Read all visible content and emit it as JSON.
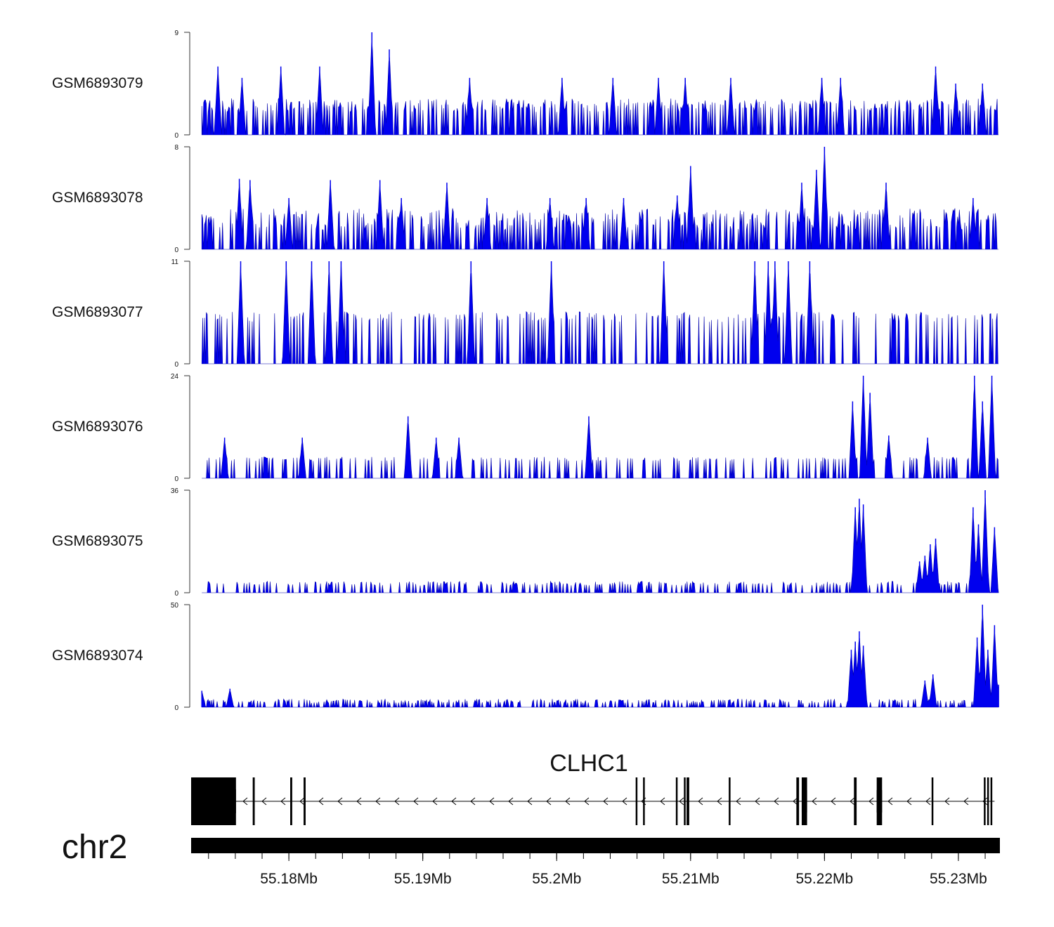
{
  "chart_data": {
    "type": "area",
    "title": "",
    "chromosome": "chr2",
    "xlim": [
      55.1727,
      55.2331
    ],
    "x_unit": "Mb",
    "series_color": "#0000ee",
    "tracks": [
      {
        "name": "GSM6893079",
        "ymax": 9,
        "yticks": [
          "0",
          "9"
        ],
        "peaks": [
          [
            55.1747,
            6
          ],
          [
            55.1765,
            5
          ],
          [
            55.1794,
            6
          ],
          [
            55.1823,
            6
          ],
          [
            55.1862,
            9
          ],
          [
            55.1875,
            7.5
          ],
          [
            55.1935,
            5
          ],
          [
            55.2004,
            5
          ],
          [
            55.2042,
            5
          ],
          [
            55.2076,
            5
          ],
          [
            55.2096,
            5
          ],
          [
            55.213,
            5
          ],
          [
            55.2198,
            5
          ],
          [
            55.2212,
            5
          ],
          [
            55.2283,
            6
          ],
          [
            55.2298,
            4.5
          ],
          [
            55.2318,
            4.5
          ]
        ],
        "baseline": [
          2,
          3.2
        ],
        "density": 0.42
      },
      {
        "name": "GSM6893078",
        "ymax": 8,
        "yticks": [
          "0",
          "8"
        ],
        "peaks": [
          [
            55.1763,
            5.5
          ],
          [
            55.1771,
            5.4
          ],
          [
            55.18,
            4
          ],
          [
            55.1831,
            5.4
          ],
          [
            55.1868,
            5.4
          ],
          [
            55.1884,
            4
          ],
          [
            55.1918,
            5.2
          ],
          [
            55.1948,
            4
          ],
          [
            55.1995,
            4
          ],
          [
            55.2022,
            4
          ],
          [
            55.205,
            4
          ],
          [
            55.209,
            4.2
          ],
          [
            55.21,
            6.5
          ],
          [
            55.2183,
            5.2
          ],
          [
            55.2194,
            6.2
          ],
          [
            55.22,
            8
          ],
          [
            55.2246,
            5.2
          ],
          [
            55.2311,
            4
          ]
        ],
        "baseline": [
          1.5,
          3.2
        ],
        "density": 0.42
      },
      {
        "name": "GSM6893077",
        "ymax": 11,
        "yticks": [
          "0",
          "11"
        ],
        "peaks": [
          [
            55.1764,
            11
          ],
          [
            55.1798,
            11
          ],
          [
            55.1817,
            11
          ],
          [
            55.183,
            11
          ],
          [
            55.1839,
            11
          ],
          [
            55.1936,
            11
          ],
          [
            55.1996,
            11
          ],
          [
            55.208,
            11
          ],
          [
            55.2148,
            11
          ],
          [
            55.2158,
            11
          ],
          [
            55.2163,
            11
          ],
          [
            55.2173,
            11
          ],
          [
            55.2189,
            11
          ]
        ],
        "baseline": [
          4.5,
          5.6
        ],
        "density": 0.26
      },
      {
        "name": "GSM6893076",
        "ymax": 24,
        "yticks": [
          "0",
          "24"
        ],
        "peaks": [
          [
            55.1752,
            9.5
          ],
          [
            55.181,
            9.5
          ],
          [
            55.1889,
            14.5
          ],
          [
            55.191,
            9.5
          ],
          [
            55.1927,
            9.5
          ],
          [
            55.2024,
            14.5
          ],
          [
            55.2221,
            18
          ],
          [
            55.2229,
            24
          ],
          [
            55.2234,
            20
          ],
          [
            55.2248,
            10
          ],
          [
            55.2277,
            9.5
          ],
          [
            55.2312,
            24
          ],
          [
            55.2318,
            18
          ],
          [
            55.2325,
            24
          ]
        ],
        "baseline": [
          4,
          5
        ],
        "density": 0.22
      },
      {
        "name": "GSM6893075",
        "ymax": 36,
        "yticks": [
          "0",
          "36"
        ],
        "peaks": [
          [
            55.2223,
            30
          ],
          [
            55.2226,
            33
          ],
          [
            55.2229,
            31
          ],
          [
            55.2271,
            11
          ],
          [
            55.2275,
            13
          ],
          [
            55.2279,
            17
          ],
          [
            55.2283,
            19
          ],
          [
            55.2311,
            30
          ],
          [
            55.2315,
            24
          ],
          [
            55.232,
            36
          ],
          [
            55.2327,
            23
          ]
        ],
        "baseline": [
          2.5,
          4
        ],
        "density": 0.28
      },
      {
        "name": "GSM6893074",
        "ymax": 50,
        "yticks": [
          "0",
          "50"
        ],
        "peaks": [
          [
            55.1735,
            8
          ],
          [
            55.1756,
            9
          ],
          [
            55.222,
            28
          ],
          [
            55.2223,
            32
          ],
          [
            55.2226,
            37
          ],
          [
            55.2229,
            30
          ],
          [
            55.2275,
            13
          ],
          [
            55.2281,
            16
          ],
          [
            55.2314,
            34
          ],
          [
            55.2318,
            50
          ],
          [
            55.2322,
            28
          ],
          [
            55.2327,
            40
          ],
          [
            55.233,
            11
          ]
        ],
        "baseline": [
          2,
          4
        ],
        "density": 0.36
      }
    ],
    "gene": {
      "name": "CLHC1",
      "strand": "-",
      "start": 55.1727,
      "end": 55.2327,
      "exons": [
        [
          55.1727,
          55.17605
        ],
        [
          55.1773,
          55.17745
        ],
        [
          55.1801,
          55.18025
        ],
        [
          55.1811,
          55.18125
        ],
        [
          55.2059,
          55.206
        ],
        [
          55.20645,
          55.20655
        ],
        [
          55.2089,
          55.209
        ],
        [
          55.2095,
          55.2096
        ],
        [
          55.2097,
          55.2099
        ],
        [
          55.21285,
          55.21295
        ],
        [
          55.2179,
          55.2181
        ],
        [
          55.2183,
          55.2187
        ],
        [
          55.2222,
          55.2224
        ],
        [
          55.2239,
          55.2243
        ],
        [
          55.228,
          55.2281
        ],
        [
          55.2319,
          55.232
        ],
        [
          55.23215,
          55.23225
        ],
        [
          55.2324,
          55.2325
        ]
      ],
      "cds": [
        [
          55.1727,
          55.17605
        ],
        [
          55.2183,
          55.2187
        ],
        [
          55.2239,
          55.2243
        ]
      ]
    },
    "xticks": [
      "55.18Mb",
      "55.19Mb",
      "55.2Mb",
      "55.21Mb",
      "55.22Mb",
      "55.23Mb"
    ],
    "xtick_values": [
      55.18,
      55.19,
      55.2,
      55.21,
      55.22,
      55.23
    ]
  }
}
